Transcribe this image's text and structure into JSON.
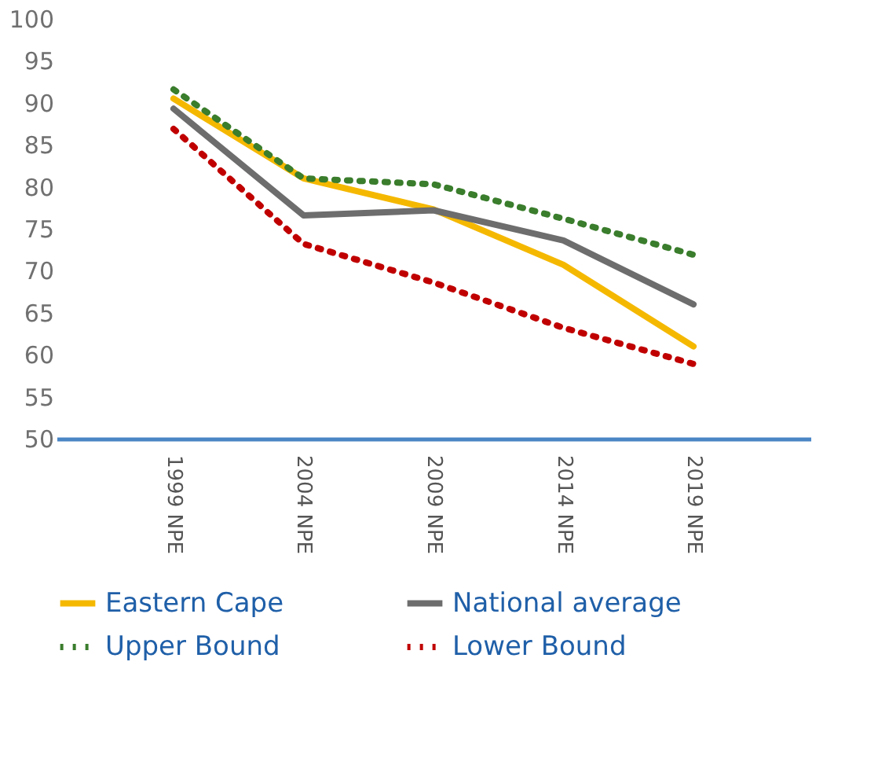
{
  "chart_data": {
    "type": "line",
    "categories": [
      "1999 NPE",
      "2004 NPE",
      "2009 NPE",
      "2014 NPE",
      "2019 NPE"
    ],
    "series": [
      {
        "name": "Eastern Cape",
        "color": "#f5b800",
        "line_style": "solid",
        "values": [
          90.5,
          81,
          77.3,
          70.7,
          61
        ]
      },
      {
        "name": "National average",
        "color": "#6d6d6d",
        "line_style": "solid",
        "values": [
          89.3,
          76.6,
          77.2,
          73.6,
          66
        ]
      },
      {
        "name": "Upper Bound",
        "color": "#3a7d2c",
        "line_style": "dotted",
        "values": [
          91.6,
          81,
          80.3,
          76.2,
          71.9
        ]
      },
      {
        "name": "Lower Bound",
        "color": "#c00000",
        "line_style": "dotted",
        "values": [
          86.9,
          73.2,
          68.6,
          63.2,
          58.9
        ]
      }
    ],
    "ylim": [
      50,
      100
    ],
    "yticks": [
      50,
      55,
      60,
      65,
      70,
      75,
      80,
      85,
      90,
      95,
      100
    ],
    "grid": false,
    "legend": "bottom",
    "marker": "none"
  }
}
